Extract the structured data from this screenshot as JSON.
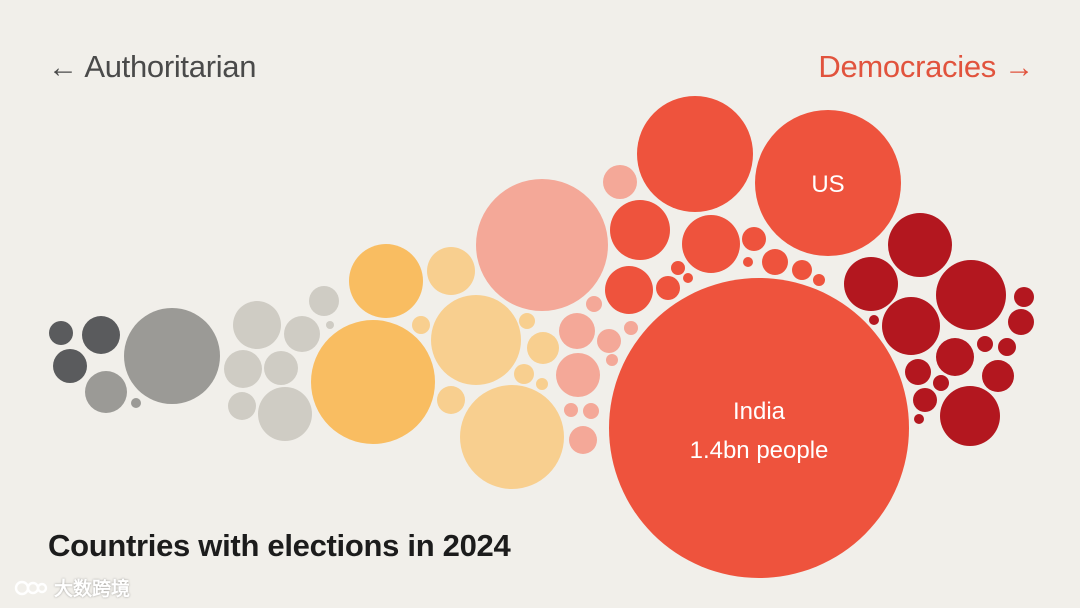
{
  "chart_data": {
    "type": "bubble-cluster",
    "title": "Countries with elections in 2024",
    "axis": {
      "left_label": "Authoritarian",
      "right_label": "Democracies"
    },
    "groups": [
      {
        "name": "authoritarian-dark",
        "color": "#5a5b5d"
      },
      {
        "name": "authoritarian-grey",
        "color": "#9b9a96"
      },
      {
        "name": "hybrid-light-grey",
        "color": "#cfccc4"
      },
      {
        "name": "flawed-orange",
        "color": "#f9bd61"
      },
      {
        "name": "flawed-light-orange",
        "color": "#f8cf8f"
      },
      {
        "name": "democracy-pink",
        "color": "#f4a898"
      },
      {
        "name": "democracy-red",
        "color": "#ee533d"
      },
      {
        "name": "full-democracy-dark-red",
        "color": "#b3171f"
      }
    ],
    "highlighted": [
      {
        "country": "US",
        "label": "US"
      },
      {
        "country": "India",
        "label": "India",
        "note": "1.4bn people"
      }
    ]
  },
  "watermark": {
    "text": "大数跨境"
  }
}
